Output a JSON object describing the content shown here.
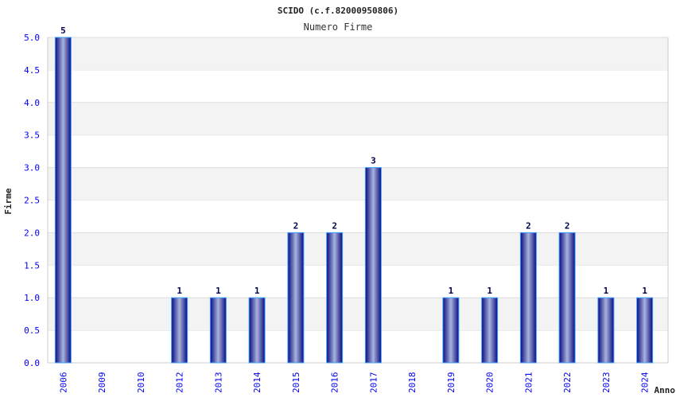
{
  "chart_data": {
    "type": "bar",
    "title": "SCIDO (c.f.82000950806)",
    "subtitle": "Numero Firme",
    "xlabel": "Anno",
    "ylabel": "Firme",
    "categories": [
      "2006",
      "2009",
      "2010",
      "2012",
      "2013",
      "2014",
      "2015",
      "2016",
      "2017",
      "2018",
      "2019",
      "2020",
      "2021",
      "2022",
      "2023",
      "2024"
    ],
    "values": [
      5,
      0,
      0,
      1,
      1,
      1,
      2,
      2,
      3,
      0,
      1,
      1,
      2,
      2,
      1,
      1
    ],
    "ylim": [
      0,
      5
    ],
    "yticks": [
      "0.0",
      "0.5",
      "1.0",
      "1.5",
      "2.0",
      "2.5",
      "3.0",
      "3.5",
      "4.0",
      "4.5",
      "5.0"
    ],
    "grid": true,
    "colors": {
      "bar_dark": "#0a0a80",
      "bar_light": "#a8b4dc",
      "tick": "#0000ee",
      "band": "#f3f3f3"
    }
  }
}
